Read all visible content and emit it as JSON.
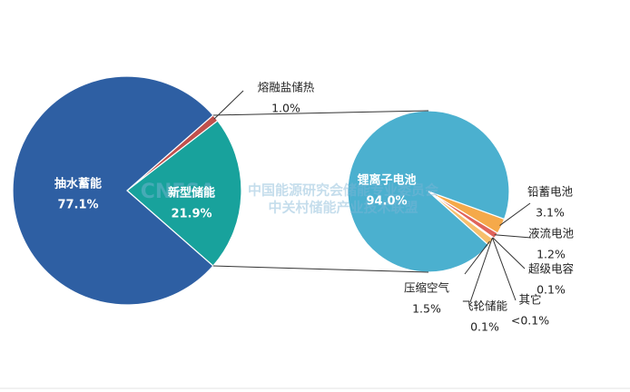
{
  "chart_data": [
    {
      "type": "pie",
      "categories": [
        "抽水蓄能",
        "新型储能",
        "熔融盐储热"
      ],
      "values": [
        77.1,
        21.9,
        1.0
      ],
      "value_labels": [
        "77.1%",
        "21.9%",
        "1.0%"
      ],
      "colors": [
        "#2e5fa3",
        "#18a29c",
        "#c0504d"
      ]
    },
    {
      "type": "pie",
      "categories": [
        "锂离子电池",
        "铅蓄电池",
        "液流电池",
        "超级电容",
        "其它",
        "飞轮储能",
        "压缩空气"
      ],
      "values": [
        94.0,
        3.1,
        1.2,
        0.1,
        0.05,
        0.1,
        1.5
      ],
      "value_labels": [
        "94.0%",
        "3.1%",
        "1.2%",
        "0.1%",
        "<0.1%",
        "0.1%",
        "1.5%"
      ],
      "colors": [
        "#4bb0cf",
        "#f5a94a",
        "#e0645a",
        "#e9c04a",
        "#9bbb59",
        "#8064a2",
        "#f7bf6c"
      ]
    }
  ],
  "watermark": [
    "CNESA",
    "中国能源研究会储能专业委员会",
    "中关村储能产业技术联盟"
  ]
}
